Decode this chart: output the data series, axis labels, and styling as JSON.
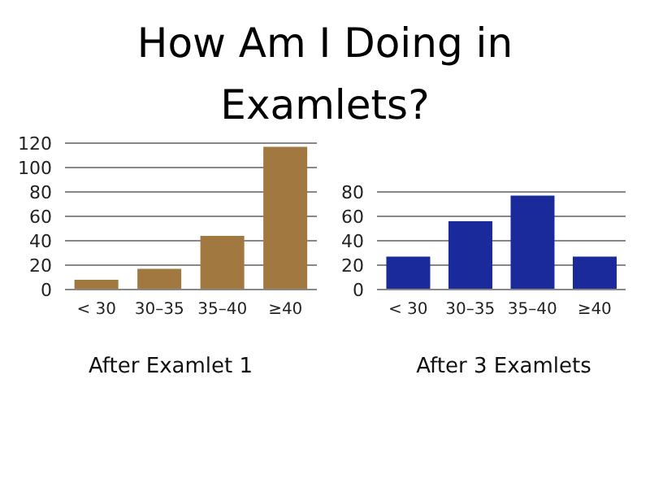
{
  "chart_data": [
    {
      "type": "bar",
      "title": "How Am I Doing in Examlets?",
      "xlabel": "After Examlet 1",
      "categories": [
        "< 30",
        "30–35",
        "35–40",
        "≥40"
      ],
      "values": [
        8,
        17,
        44,
        117
      ],
      "color": "#a07840",
      "ylim": [
        0,
        120
      ],
      "yticks": [
        0,
        20,
        40,
        60,
        80,
        100,
        120
      ],
      "grid": "y"
    },
    {
      "type": "bar",
      "xlabel": "After 3 Examlets",
      "categories": [
        "< 30",
        "30–35",
        "35–40",
        "≥40"
      ],
      "values": [
        27,
        56,
        77,
        27
      ],
      "color": "#1a2a9a",
      "ylim": [
        0,
        80
      ],
      "yticks": [
        0,
        20,
        40,
        60,
        80
      ],
      "grid": "y"
    }
  ]
}
